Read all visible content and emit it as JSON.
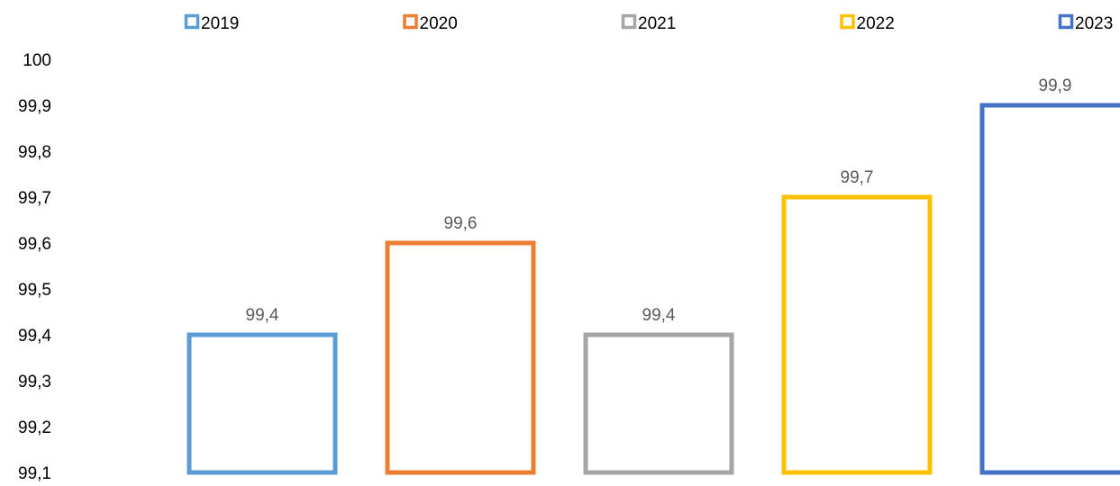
{
  "chart_data": {
    "type": "bar",
    "title": "",
    "xlabel": "",
    "ylabel": "",
    "categories": [
      "2019",
      "2020",
      "2021",
      "2022",
      "2023"
    ],
    "values": [
      99.4,
      99.6,
      99.4,
      99.7,
      99.9
    ],
    "value_labels": [
      "99,4",
      "99,6",
      "99,4",
      "99,7",
      "99,9"
    ],
    "ylim": [
      99.1,
      100
    ],
    "yticks": [
      99.1,
      99.2,
      99.3,
      99.4,
      99.5,
      99.6,
      99.7,
      99.8,
      99.9,
      100
    ],
    "ytick_labels": [
      "99,1",
      "99,2",
      "99,3",
      "99,4",
      "99,5",
      "99,6",
      "99,7",
      "99,8",
      "99,9",
      "100"
    ],
    "colors": [
      "#5b9bd5",
      "#ed7d31",
      "#a5a5a5",
      "#ffc000",
      "#4472c4"
    ],
    "bar_style": "outline",
    "grid": false,
    "legend": {
      "position": "top",
      "entries": [
        "2019",
        "2020",
        "2021",
        "2022",
        "2023"
      ]
    }
  }
}
